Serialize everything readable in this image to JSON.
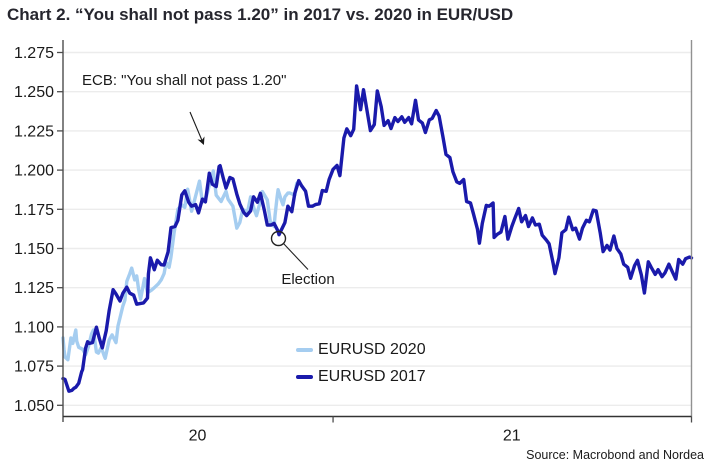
{
  "title": "Chart 2. “You shall not pass 1.20” in 2017 vs. 2020 in EUR/USD",
  "source": "Source: Macrobond and Nordea",
  "chart_data": {
    "type": "line",
    "title": "Chart 2. “You shall not pass 1.20” in 2017 vs. 2020 in EUR/USD",
    "grid": true,
    "legend_position": "bottom-center",
    "colors": {
      "series_2020": "#A5CDF0",
      "series_2017": "#1A1AAB",
      "gridline": "#ececec",
      "axis": "#4d4d4d",
      "right_border": "#919191",
      "text": "#1a1a1a"
    },
    "y_axis": {
      "min": 1.05,
      "max": 1.275,
      "tick_step": 0.025,
      "ticks": [
        "1.275",
        "1.250",
        "1.225",
        "1.200",
        "1.175",
        "1.150",
        "1.125",
        "1.100",
        "1.075",
        "1.050"
      ]
    },
    "x_axis": {
      "description": "overlaid timelines: Apr 2020–Nov 2020 (EURUSD 2020) and Apr 2017–Dec 2018 (EURUSD 2017), labelled as years 20 and 21",
      "span_days": 640,
      "year_boundary_tick_days": [
        275,
        640
      ],
      "year_labels": [
        {
          "label": "20",
          "center_day": 137
        },
        {
          "label": "21",
          "center_day": 457
        }
      ]
    },
    "annotations": {
      "ecb_text": "ECB: \"You shall not pass 1.20\"",
      "election_text": "Election"
    },
    "series": [
      {
        "name": "EURUSD 2020",
        "color": "#A5CDF0",
        "points": [
          [
            0,
            1.093
          ],
          [
            1,
            1.0857
          ],
          [
            2,
            1.0808
          ],
          [
            5,
            1.0791
          ],
          [
            8,
            1.093
          ],
          [
            10,
            1.0895
          ],
          [
            13,
            1.098
          ],
          [
            14,
            1.091
          ],
          [
            16,
            1.087
          ],
          [
            20,
            1.0858
          ],
          [
            23,
            1.0823
          ],
          [
            26,
            1.0875
          ],
          [
            29,
            1.0955
          ],
          [
            31,
            1.098
          ],
          [
            34,
            1.084
          ],
          [
            36,
            1.0833
          ],
          [
            39,
            1.087
          ],
          [
            42,
            1.0815
          ],
          [
            43,
            1.08
          ],
          [
            47,
            1.0917
          ],
          [
            50,
            1.0949
          ],
          [
            54,
            1.09
          ],
          [
            56,
            1.1006
          ],
          [
            61,
            1.1134
          ],
          [
            63,
            1.117
          ],
          [
            65,
            1.129
          ],
          [
            68,
            1.134
          ],
          [
            70,
            1.1375
          ],
          [
            73,
            1.13
          ],
          [
            75,
            1.1325
          ],
          [
            77,
            1.124
          ],
          [
            79,
            1.1177
          ],
          [
            83,
            1.1308
          ],
          [
            86,
            1.1218
          ],
          [
            90,
            1.1234
          ],
          [
            93,
            1.125
          ],
          [
            97,
            1.1274
          ],
          [
            100,
            1.13
          ],
          [
            103,
            1.134
          ],
          [
            105,
            1.141
          ],
          [
            108,
            1.138
          ],
          [
            110,
            1.1447
          ],
          [
            113,
            1.1596
          ],
          [
            117,
            1.175
          ],
          [
            121,
            1.1778
          ],
          [
            124,
            1.1762
          ],
          [
            127,
            1.1878
          ],
          [
            131,
            1.1738
          ],
          [
            134,
            1.181
          ],
          [
            139,
            1.193
          ],
          [
            142,
            1.1796
          ],
          [
            146,
            1.1833
          ],
          [
            149,
            1.1903
          ],
          [
            153,
            1.1995
          ],
          [
            156,
            1.184
          ],
          [
            161,
            1.18
          ],
          [
            166,
            1.1865
          ],
          [
            168,
            1.1815
          ],
          [
            173,
            1.177
          ],
          [
            177,
            1.163
          ],
          [
            180,
            1.1665
          ],
          [
            183,
            1.1748
          ],
          [
            188,
            1.1735
          ],
          [
            191,
            1.183
          ],
          [
            195,
            1.1745
          ],
          [
            197,
            1.1709
          ],
          [
            202,
            1.1825
          ],
          [
            203,
            1.1863
          ],
          [
            208,
            1.181
          ],
          [
            211,
            1.1675
          ],
          [
            215,
            1.164
          ],
          [
            216,
            1.1715
          ],
          [
            218,
            1.1828
          ],
          [
            219,
            1.1875
          ],
          [
            222,
            1.1813
          ],
          [
            224,
            1.1779
          ],
          [
            226,
            1.183
          ],
          [
            229,
            1.1853
          ],
          [
            231,
            1.1854
          ],
          [
            236,
            1.184
          ],
          [
            238,
            1.1915
          ],
          [
            239,
            1.192
          ]
        ]
      },
      {
        "name": "EURUSD 2017",
        "color": "#1A1AAB",
        "points": [
          [
            0,
            1.067
          ],
          [
            2,
            1.0665
          ],
          [
            6,
            1.059
          ],
          [
            9,
            1.0595
          ],
          [
            11,
            1.0608
          ],
          [
            13,
            1.0615
          ],
          [
            16,
            1.064
          ],
          [
            19,
            1.0715
          ],
          [
            20,
            1.0727
          ],
          [
            23,
            1.0865
          ],
          [
            25,
            1.0905
          ],
          [
            27,
            1.0895
          ],
          [
            30,
            1.09
          ],
          [
            34,
            1.0998
          ],
          [
            37,
            1.0927
          ],
          [
            40,
            1.0866
          ],
          [
            44,
            1.0975
          ],
          [
            47,
            1.1105
          ],
          [
            51,
            1.1237
          ],
          [
            54,
            1.121
          ],
          [
            58,
            1.1165
          ],
          [
            61,
            1.1215
          ],
          [
            65,
            1.1253
          ],
          [
            68,
            1.1215
          ],
          [
            72,
            1.1202
          ],
          [
            75,
            1.1145
          ],
          [
            79,
            1.115
          ],
          [
            82,
            1.1153
          ],
          [
            86,
            1.1184
          ],
          [
            87,
            1.1337
          ],
          [
            89,
            1.1441
          ],
          [
            93,
            1.1365
          ],
          [
            96,
            1.1425
          ],
          [
            100,
            1.1397
          ],
          [
            103,
            1.1395
          ],
          [
            107,
            1.1478
          ],
          [
            110,
            1.1633
          ],
          [
            114,
            1.164
          ],
          [
            117,
            1.168
          ],
          [
            121,
            1.1842
          ],
          [
            124,
            1.1868
          ],
          [
            128,
            1.1795
          ],
          [
            131,
            1.177
          ],
          [
            135,
            1.178
          ],
          [
            138,
            1.1727
          ],
          [
            142,
            1.1815
          ],
          [
            145,
            1.1797
          ],
          [
            149,
            1.198
          ],
          [
            152,
            1.191
          ],
          [
            156,
            1.1895
          ],
          [
            159,
            1.2023
          ],
          [
            160,
            1.2028
          ],
          [
            163,
            1.1953
          ],
          [
            166,
            1.1885
          ],
          [
            170,
            1.1953
          ],
          [
            173,
            1.1944
          ],
          [
            177,
            1.1847
          ],
          [
            180,
            1.1785
          ],
          [
            184,
            1.173
          ],
          [
            187,
            1.171
          ],
          [
            191,
            1.174
          ],
          [
            194,
            1.183
          ],
          [
            198,
            1.1795
          ],
          [
            201,
            1.1852
          ],
          [
            205,
            1.1745
          ],
          [
            208,
            1.165
          ],
          [
            212,
            1.165
          ],
          [
            215,
            1.166
          ],
          [
            219,
            1.161
          ],
          [
            220,
            1.1588
          ],
          [
            226,
            1.1665
          ],
          [
            229,
            1.177
          ],
          [
            233,
            1.1735
          ],
          [
            236,
            1.1852
          ],
          [
            240,
            1.1933
          ],
          [
            243,
            1.19
          ],
          [
            247,
            1.1865
          ],
          [
            250,
            1.177
          ],
          [
            254,
            1.177
          ],
          [
            257,
            1.178
          ],
          [
            261,
            1.1785
          ],
          [
            264,
            1.187
          ],
          [
            268,
            1.1865
          ],
          [
            271,
            1.194
          ],
          [
            275,
            1.2005
          ],
          [
            279,
            1.203
          ],
          [
            282,
            1.1965
          ],
          [
            286,
            1.2205
          ],
          [
            289,
            1.2263
          ],
          [
            293,
            1.222
          ],
          [
            296,
            1.226
          ],
          [
            299,
            1.2537
          ],
          [
            303,
            1.2385
          ],
          [
            306,
            1.2513
          ],
          [
            310,
            1.2365
          ],
          [
            313,
            1.2252
          ],
          [
            317,
            1.229
          ],
          [
            320,
            1.2505
          ],
          [
            324,
            1.2405
          ],
          [
            327,
            1.2285
          ],
          [
            331,
            1.2315
          ],
          [
            334,
            1.2265
          ],
          [
            338,
            1.2335
          ],
          [
            341,
            1.231
          ],
          [
            345,
            1.234
          ],
          [
            348,
            1.2305
          ],
          [
            352,
            1.2335
          ],
          [
            355,
            1.2295
          ],
          [
            359,
            1.2445
          ],
          [
            362,
            1.232
          ],
          [
            366,
            1.23
          ],
          [
            369,
            1.224
          ],
          [
            373,
            1.232
          ],
          [
            376,
            1.233
          ],
          [
            380,
            1.238
          ],
          [
            383,
            1.2345
          ],
          [
            387,
            1.221
          ],
          [
            390,
            1.21
          ],
          [
            394,
            1.208
          ],
          [
            397,
            1.199
          ],
          [
            401,
            1.1925
          ],
          [
            404,
            1.1915
          ],
          [
            408,
            1.194
          ],
          [
            411,
            1.18
          ],
          [
            415,
            1.179
          ],
          [
            418,
            1.172
          ],
          [
            422,
            1.1625
          ],
          [
            424,
            1.1534
          ],
          [
            427,
            1.166
          ],
          [
            431,
            1.1775
          ],
          [
            434,
            1.177
          ],
          [
            438,
            1.179
          ],
          [
            439,
            1.157
          ],
          [
            442,
            1.159
          ],
          [
            446,
            1.1605
          ],
          [
            450,
            1.1704
          ],
          [
            453,
            1.156
          ],
          [
            457,
            1.164
          ],
          [
            460,
            1.169
          ],
          [
            464,
            1.1755
          ],
          [
            467,
            1.167
          ],
          [
            471,
            1.171
          ],
          [
            474,
            1.164
          ],
          [
            478,
            1.1695
          ],
          [
            481,
            1.165
          ],
          [
            485,
            1.1655
          ],
          [
            488,
            1.1585
          ],
          [
            492,
            1.1555
          ],
          [
            495,
            1.153
          ],
          [
            499,
            1.141
          ],
          [
            501,
            1.134
          ],
          [
            505,
            1.144
          ],
          [
            508,
            1.16
          ],
          [
            512,
            1.162
          ],
          [
            515,
            1.17
          ],
          [
            519,
            1.162
          ],
          [
            522,
            1.163
          ],
          [
            526,
            1.156
          ],
          [
            529,
            1.163
          ],
          [
            533,
            1.168
          ],
          [
            536,
            1.167
          ],
          [
            540,
            1.1745
          ],
          [
            543,
            1.174
          ],
          [
            547,
            1.16
          ],
          [
            550,
            1.148
          ],
          [
            554,
            1.152
          ],
          [
            557,
            1.149
          ],
          [
            561,
            1.158
          ],
          [
            564,
            1.15
          ],
          [
            568,
            1.1465
          ],
          [
            571,
            1.14
          ],
          [
            575,
            1.138
          ],
          [
            578,
            1.131
          ],
          [
            582,
            1.139
          ],
          [
            585,
            1.1425
          ],
          [
            589,
            1.133
          ],
          [
            592,
            1.1216
          ],
          [
            596,
            1.1415
          ],
          [
            599,
            1.138
          ],
          [
            603,
            1.1335
          ],
          [
            606,
            1.1365
          ],
          [
            610,
            1.132
          ],
          [
            613,
            1.1345
          ],
          [
            617,
            1.14
          ],
          [
            620,
            1.1358
          ],
          [
            624,
            1.1305
          ],
          [
            627,
            1.143
          ],
          [
            631,
            1.14
          ],
          [
            634,
            1.1435
          ],
          [
            638,
            1.1445
          ],
          [
            640,
            1.144
          ]
        ]
      }
    ]
  }
}
